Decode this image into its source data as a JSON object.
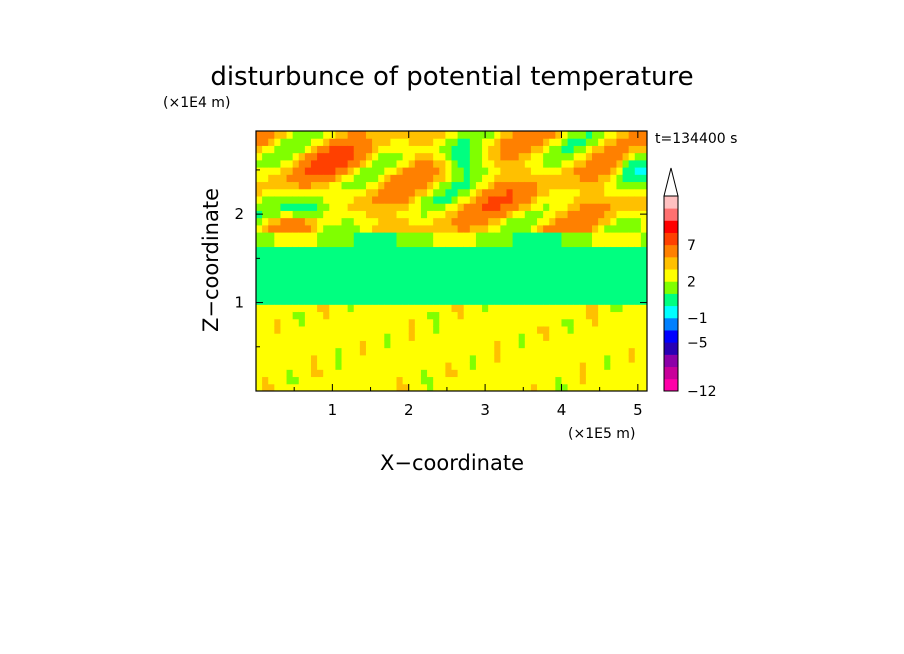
{
  "chart_data": {
    "type": "heatmap",
    "title": "disturbunce of potential temperature",
    "xlabel": "X−coordinate",
    "ylabel": "Z−coordinate",
    "x_unit": "(×1E5 m)",
    "y_unit": "(×1E4 m)",
    "time_label": "t=134400 s",
    "xlim": [
      0,
      5.12
    ],
    "ylim": [
      0,
      2.94
    ],
    "xticks": [
      1,
      2,
      3,
      4,
      5
    ],
    "xtick_labels": [
      "1",
      "2",
      "3",
      "4",
      "5"
    ],
    "yticks": [
      1,
      2
    ],
    "ytick_labels": [
      "1",
      "2"
    ],
    "levels": [
      -12,
      -11,
      -9,
      -7,
      -5,
      -3,
      -1,
      0,
      1,
      2,
      3,
      5,
      7,
      9,
      11
    ],
    "level_colors": [
      "#ff00a8",
      "#c8009a",
      "#8c00a8",
      "#2800b4",
      "#0000ff",
      "#0080ff",
      "#00ffff",
      "#00ff80",
      "#80ff00",
      "#ffff00",
      "#ffc000",
      "#ff8000",
      "#ff4000",
      "#ff0000",
      "#ff7070",
      "#ffc0c0"
    ],
    "colorbar_labels": [
      {
        "value": 7,
        "label": "7"
      },
      {
        "value": 2,
        "label": "2"
      },
      {
        "value": -1,
        "label": "−1"
      },
      {
        "value": -5,
        "label": "−5"
      },
      {
        "value": -12,
        "label": "−12"
      }
    ],
    "grid": false
  }
}
